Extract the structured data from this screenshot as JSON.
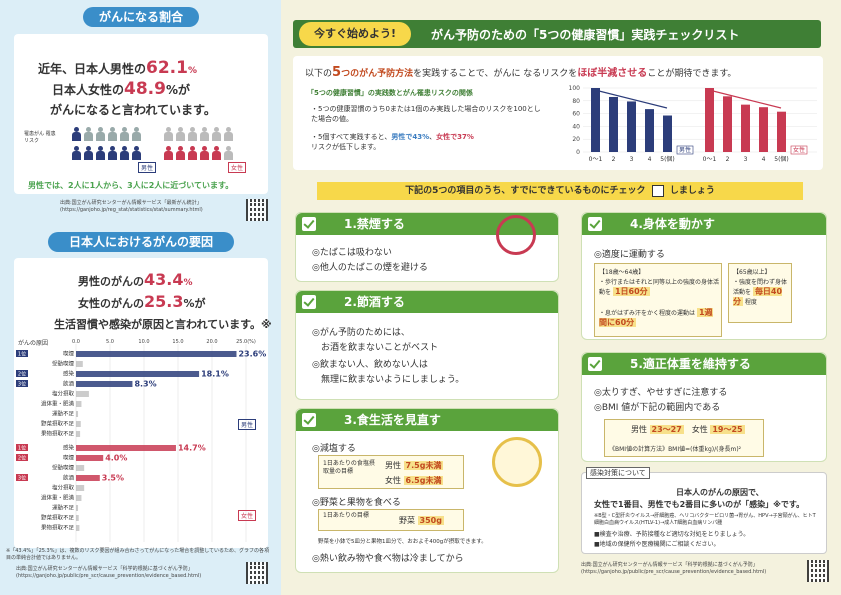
{
  "left": {
    "section1": {
      "title": "がんになる割合",
      "line1a": "近年、日本人男性の",
      "male_pct": "62.1",
      "pct_unit": "%",
      "line2a": "日本人女性の",
      "female_pct": "48.9",
      "line2b": "%が",
      "line3": "がんになると言われています。",
      "legend": "罹患がん 罹患リスク",
      "male_label": "男性",
      "female_label": "女性",
      "summary": "男性では、2人に1人から、3人に2人に近づいています。",
      "source": "出典:国立がん研究センターがん情報サービス「最新がん統計」 (https://ganjoho.jp/reg_stat/statistics/stat/summary.html)"
    },
    "section2": {
      "title": "日本人におけるがんの要因",
      "line1a": "男性のがんの",
      "male_pct": "43.4",
      "pct_unit": "%",
      "line2a": "女性のがんの",
      "female_pct": "25.3",
      "line2b": "%が",
      "line3": "生活習慣や感染が原因と言われています。※",
      "chart_title": "がんの原因",
      "axis_ticks": [
        "0.0",
        "5.0",
        "10.0",
        "15.0",
        "20.0",
        "25.0(%)"
      ],
      "male_label": "男性",
      "female_label": "女性",
      "note": "※「43.4%」「25.3%」は、複数のリスク要因が組み合わさってがんになった場合を調整しているため、グラフの各項目の単純合計値ではありません。",
      "source": "出典:国立がん研究センターがん情報サービス「科学的根拠に基づくがん予防」 (https://ganjoho.jp/public/pre_scr/cause_prevention/evidence_based.html)"
    }
  },
  "chart_data": [
    {
      "type": "bar",
      "title": "がんの原因",
      "series_name": "男性",
      "categories": [
        "喫煙",
        "受動喫煙",
        "感染",
        "飲酒",
        "塩分摂取",
        "過体重・肥満",
        "運動不足",
        "野菜摂取不足",
        "果物摂取不足"
      ],
      "rank_labels": [
        "1位",
        "",
        "2位",
        "3位",
        "",
        "",
        "",
        "",
        ""
      ],
      "values": [
        23.6,
        1.0,
        18.1,
        8.3,
        1.9,
        0.8,
        0.3,
        0.7,
        0.6
      ],
      "value_labels": [
        "23.6%",
        "",
        "18.1%",
        "8.3%",
        "",
        "",
        "",
        "",
        ""
      ],
      "xlim": [
        0,
        25
      ]
    },
    {
      "type": "bar",
      "series_name": "女性",
      "categories": [
        "感染",
        "喫煙",
        "受動喫煙",
        "飲酒",
        "塩分摂取",
        "過体重・肥満",
        "運動不足",
        "野菜摂取不足",
        "果物摂取不足"
      ],
      "rank_labels": [
        "1位",
        "2位",
        "",
        "3位",
        "",
        "",
        "",
        "",
        ""
      ],
      "values": [
        14.7,
        4.0,
        1.2,
        3.5,
        1.2,
        0.8,
        0.3,
        0.4,
        0.5
      ],
      "value_labels": [
        "14.7%",
        "4.0%",
        "",
        "3.5%",
        "",
        "",
        "",
        "",
        ""
      ],
      "xlim": [
        0,
        25
      ]
    },
    {
      "type": "bar",
      "series_name": "男性",
      "categories": [
        "0〜1",
        "2",
        "3",
        "4",
        "5(個)"
      ],
      "values": [
        100,
        86,
        79,
        67,
        57
      ],
      "ylim": [
        0,
        100
      ],
      "yticks": [
        "0",
        "20",
        "40",
        "60",
        "80",
        "100"
      ]
    },
    {
      "type": "bar",
      "series_name": "女性",
      "categories": [
        "0〜1",
        "2",
        "3",
        "4",
        "5(個)"
      ],
      "values": [
        100,
        87,
        74,
        70,
        63
      ],
      "ylim": [
        0,
        100
      ]
    }
  ],
  "right": {
    "tag": "今すぐ始めよう!",
    "title": "がん予防のための「5つの健康習慣」実践チェックリスト",
    "intro_a": "以下の",
    "intro_num": "5",
    "intro_b": "つのがん予防方法",
    "intro_c": "を実践することで、がんに なるリスクを",
    "intro_d": "ほぼ半減させる",
    "intro_e": "ことが期待できます。",
    "rel_title": "「5つの健康習慣」の実践数とがん罹患リスクの関係",
    "rel_1": "・5つの健康習慣のうち0または1個のみ実践した場合のリスクを100とした場合の値。",
    "rel_2a": "・5個すべて実践すると、",
    "rel_2b": "男性で43%",
    "rel_2c": "、",
    "rel_2d": "女性で37%",
    "rel_2e": "リスクが低下します。",
    "chart_male": "男性",
    "chart_female": "女性",
    "check_banner": "下記の5つの項目のうち、すでにできているものにチェック",
    "check_banner_b": "しましょう",
    "c1_title": "1.禁煙する",
    "c1_items": [
      "◎たばこは吸わない",
      "◎他人のたばこの煙を避ける"
    ],
    "c2_title": "2.節酒する",
    "c2_items": [
      "◎がん予防のためには、",
      "　お酒を飲まないことがベスト",
      "◎飲まない人、飲めない人は",
      "　無理に飲まないようにしましょう。"
    ],
    "c3_title": "3.食生活を見直す",
    "c3_salt": "◎減塩する",
    "c3_salt_lbl": "1日あたりの食塩摂取量の目標",
    "c3_male": "男性",
    "c3_male_val": "7.5g未満",
    "c3_female": "女性",
    "c3_female_val": "6.5g未満",
    "c3_veg": "◎野菜と果物を食べる",
    "c3_veg_lbl": "1日あたりの目標",
    "c3_veg_name": "野菜",
    "c3_veg_val": "350g",
    "c3_veg_note": "野菜を小鉢で5皿分と果物1皿分で、おおよそ400gが摂取できます。",
    "c3_hot": "◎熱い飲み物や食べ物は冷ましてから",
    "c4_title": "4.身体を動かす",
    "c4_head": "◎適度に運動する",
    "c4_age1": "【18歳〜64歳】",
    "c4_a1": "・歩行またはそれと同等以上の強度の身体活動を",
    "c4_a1v": "1日60分",
    "c4_a2": "・息がはずみ汗をかく程度の運動は",
    "c4_a2v": "1週間に60分",
    "c4_age2": "【65歳以上】",
    "c4_b1": "・強度を問わず身体活動を",
    "c4_b1v": "毎日40分",
    "c4_b2": "程度",
    "c5_title": "5.適正体重を維持する",
    "c5_1": "◎太りすぎ、やせすぎに注意する",
    "c5_2": "◎BMI 値が下記の範囲内である",
    "c5_male": "男性",
    "c5_male_v": "23〜27",
    "c5_female": "女性",
    "c5_female_v": "19〜25",
    "c5_formula": "《BMI値の計算方法》BMI値=(体重kg)/(身長m)²",
    "inf_tag": "感染対策について",
    "inf_1": "日本人のがんの原因で、",
    "inf_2": "女性で1番目、男性でも2番目に多いのが「感染」※です。",
    "inf_3": "※B型・C型肝炎ウイルス→肝細胞癌、ヘリコバクターピロリ菌→胃がん、HPV→子宮頸がん、ヒトT細胞白血病ウイルス(HTLV-1)→成人T細胞白血病リンパ腫",
    "inf_4": "■検査や治療、予防接種など適切な対処をとりましょう。",
    "inf_5": "■地域の保健所や医療機関にご相談ください。",
    "source": "出典:国立がん研究センターがん情報サービス「科学的根拠に基づくがん予防」 (https://ganjoho.jp/public/pre_scr/cause_prevention/evidence_based.html)"
  },
  "colors": {
    "blue": "#3a8ec9",
    "green": "#5aa33c",
    "red": "#c83a52",
    "navy": "#2c3d7a"
  }
}
